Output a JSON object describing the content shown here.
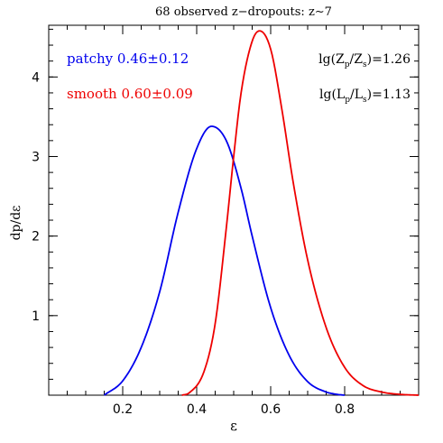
{
  "chart_data": {
    "type": "line",
    "title": "68 observed z−dropouts: z∼7",
    "xlabel": "ε",
    "ylabel": "dp/dε",
    "xlim": [
      0.0,
      1.0
    ],
    "ylim": [
      0.0,
      4.65
    ],
    "x_ticks": [
      0.2,
      0.4,
      0.6,
      0.8
    ],
    "x_tick_labels": [
      "0.2",
      "0.4",
      "0.6",
      "0.8"
    ],
    "y_ticks": [
      1,
      2,
      3,
      4
    ],
    "y_tick_labels": [
      "1",
      "2",
      "3",
      "4"
    ],
    "x_minor_step": 0.05,
    "y_minor_step": 0.2,
    "grid": false,
    "series": [
      {
        "name": "patchy",
        "color": "#0000ee",
        "x": [
          0.15,
          0.2,
          0.25,
          0.3,
          0.35,
          0.4,
          0.44,
          0.48,
          0.52,
          0.55,
          0.6,
          0.65,
          0.7,
          0.75,
          0.78,
          0.8
        ],
        "y": [
          0.0,
          0.18,
          0.6,
          1.3,
          2.3,
          3.1,
          3.38,
          3.2,
          2.6,
          2.0,
          1.1,
          0.5,
          0.17,
          0.04,
          0.01,
          0.0
        ]
      },
      {
        "name": "smooth",
        "color": "#ee0000",
        "x": [
          0.36,
          0.38,
          0.42,
          0.45,
          0.48,
          0.5,
          0.52,
          0.55,
          0.57,
          0.6,
          0.63,
          0.66,
          0.7,
          0.75,
          0.8,
          0.85,
          0.9,
          0.95,
          1.0
        ],
        "y": [
          0.0,
          0.03,
          0.3,
          0.9,
          2.1,
          3.0,
          3.8,
          4.45,
          4.58,
          4.35,
          3.6,
          2.7,
          1.7,
          0.85,
          0.35,
          0.12,
          0.04,
          0.01,
          0.0
        ]
      }
    ]
  },
  "annotations": {
    "patchy_label": "patchy 0.46±0.12",
    "smooth_label": "smooth 0.60±0.09",
    "z_ratio_lhs": "lg(Z",
    "z_ratio_sub1": "p",
    "z_ratio_mid": "/Z",
    "z_ratio_sub2": "s",
    "z_ratio_rhs": ")=1.26",
    "l_ratio_lhs": "lg(L",
    "l_ratio_sub1": "p",
    "l_ratio_mid": "/L",
    "l_ratio_sub2": "s",
    "l_ratio_rhs": ")=1.13",
    "patchy_color": "#0000ee",
    "smooth_color": "#ee0000"
  }
}
